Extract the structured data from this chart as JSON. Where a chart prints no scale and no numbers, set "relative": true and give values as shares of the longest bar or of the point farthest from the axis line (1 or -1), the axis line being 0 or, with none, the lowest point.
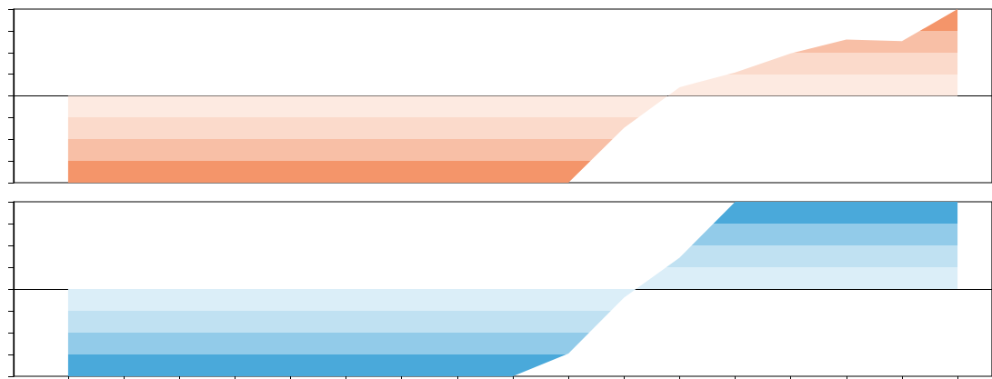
{
  "chart_data": [
    {
      "type": "area",
      "relative": true,
      "tick_labels": false,
      "categories": [
        null,
        null,
        null,
        null,
        null,
        null,
        null,
        null,
        null,
        null,
        null,
        null,
        null,
        null,
        null,
        null,
        null
      ],
      "series": [
        {
          "color": "#f4956a",
          "values": [
            -1,
            -1,
            -1,
            -1,
            -1,
            -1,
            -1,
            -1,
            -1,
            -1,
            -0.37,
            0.1,
            0.27,
            0.49,
            0.65,
            0.63,
            1
          ]
        }
      ]
    },
    {
      "type": "area",
      "relative": true,
      "tick_labels": false,
      "categories": [
        null,
        null,
        null,
        null,
        null,
        null,
        null,
        null,
        null,
        null,
        null,
        null,
        null,
        null,
        null,
        null,
        null
      ],
      "series": [
        {
          "color": "#4aa9da",
          "values": [
            -1,
            -1,
            -1,
            -1,
            -1,
            -1,
            -1,
            -1,
            -1,
            -0.74,
            -0.1,
            0.36,
            1,
            1,
            1,
            1,
            1
          ]
        }
      ]
    }
  ]
}
